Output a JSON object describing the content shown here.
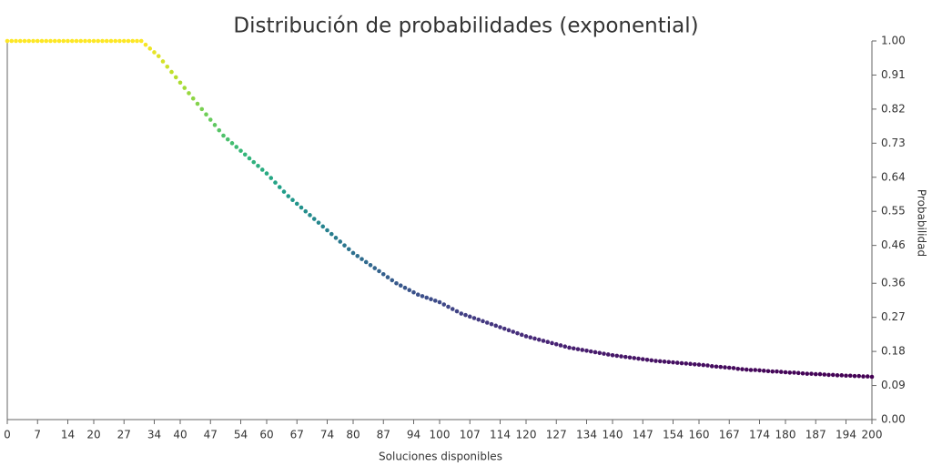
{
  "chart_data": {
    "type": "scatter",
    "title": "Distribución de probabilidades (exponential)",
    "xlabel": "Soluciones disponibles",
    "ylabel": "Probabilidad",
    "colormap": "viridis",
    "y_axis_side": "right",
    "grid": false,
    "x": [
      0,
      1,
      2,
      3,
      4,
      5,
      6,
      7,
      8,
      9,
      10,
      11,
      12,
      13,
      14,
      15,
      16,
      17,
      18,
      19,
      20,
      21,
      22,
      23,
      24,
      25,
      26,
      27,
      28,
      29,
      30,
      31,
      32,
      33,
      34,
      35,
      36,
      37,
      38,
      39,
      40,
      41,
      42,
      43,
      44,
      45,
      46,
      47,
      48,
      49,
      50,
      51,
      52,
      53,
      54,
      55,
      56,
      57,
      58,
      59,
      60,
      61,
      62,
      63,
      64,
      65,
      66,
      67,
      68,
      69,
      70,
      71,
      72,
      73,
      74,
      75,
      76,
      77,
      78,
      79,
      80,
      81,
      82,
      83,
      84,
      85,
      86,
      87,
      88,
      89,
      90,
      91,
      92,
      93,
      94,
      95,
      96,
      97,
      98,
      99,
      100,
      101,
      102,
      103,
      104,
      105,
      106,
      107,
      108,
      109,
      110,
      111,
      112,
      113,
      114,
      115,
      116,
      117,
      118,
      119,
      120,
      121,
      122,
      123,
      124,
      125,
      126,
      127,
      128,
      129,
      130,
      131,
      132,
      133,
      134,
      135,
      136,
      137,
      138,
      139,
      140,
      141,
      142,
      143,
      144,
      145,
      146,
      147,
      148,
      149,
      150,
      151,
      152,
      153,
      154,
      155,
      156,
      157,
      158,
      159,
      160,
      161,
      162,
      163,
      164,
      165,
      166,
      167,
      168,
      169,
      170,
      171,
      172,
      173,
      174,
      175,
      176,
      177,
      178,
      179,
      180,
      181,
      182,
      183,
      184,
      185,
      186,
      187,
      188,
      189,
      190,
      191,
      192,
      193,
      194,
      195,
      196,
      197,
      198,
      199,
      200
    ],
    "values": [
      1,
      1,
      1,
      1,
      1,
      1,
      1,
      1,
      1,
      1,
      1,
      1,
      1,
      1,
      1,
      1,
      1,
      1,
      1,
      1,
      1,
      1,
      1,
      1,
      1,
      1,
      1,
      1,
      1,
      1,
      1,
      1,
      0.99,
      0.98,
      0.97,
      0.96,
      0.946,
      0.932,
      0.918,
      0.904,
      0.89,
      0.876,
      0.862,
      0.848,
      0.834,
      0.82,
      0.806,
      0.792,
      0.778,
      0.764,
      0.75,
      0.74,
      0.73,
      0.72,
      0.71,
      0.7,
      0.69,
      0.68,
      0.67,
      0.66,
      0.65,
      0.638,
      0.626,
      0.614,
      0.602,
      0.59,
      0.58,
      0.57,
      0.56,
      0.55,
      0.54,
      0.53,
      0.52,
      0.51,
      0.5,
      0.49,
      0.48,
      0.47,
      0.46,
      0.45,
      0.44,
      0.432,
      0.424,
      0.416,
      0.408,
      0.4,
      0.392,
      0.384,
      0.376,
      0.368,
      0.36,
      0.354,
      0.348,
      0.342,
      0.336,
      0.33,
      0.326,
      0.322,
      0.318,
      0.314,
      0.31,
      0.304,
      0.298,
      0.292,
      0.286,
      0.28,
      0.276,
      0.272,
      0.268,
      0.264,
      0.26,
      0.256,
      0.252,
      0.248,
      0.244,
      0.24,
      0.236,
      0.232,
      0.228,
      0.224,
      0.22,
      0.217,
      0.214,
      0.211,
      0.208,
      0.205,
      0.202,
      0.199,
      0.196,
      0.193,
      0.19,
      0.188,
      0.186,
      0.184,
      0.182,
      0.18,
      0.178,
      0.176,
      0.174,
      0.172,
      0.17,
      0.1685,
      0.167,
      0.1655,
      0.164,
      0.1625,
      0.161,
      0.1595,
      0.158,
      0.1565,
      0.155,
      0.154,
      0.153,
      0.152,
      0.151,
      0.15,
      0.149,
      0.148,
      0.147,
      0.146,
      0.145,
      0.144,
      0.143,
      0.141,
      0.14,
      0.139,
      0.138,
      0.137,
      0.136,
      0.134,
      0.133,
      0.132,
      0.131,
      0.131,
      0.13,
      0.129,
      0.128,
      0.127,
      0.127,
      0.126,
      0.125,
      0.124,
      0.124,
      0.123,
      0.122,
      0.121,
      0.121,
      0.12,
      0.12,
      0.119,
      0.118,
      0.118,
      0.117,
      0.117,
      0.116,
      0.116,
      0.115,
      0.115,
      0.114,
      0.114,
      0.113
    ],
    "xlim": [
      0,
      200
    ],
    "xticks": [
      0,
      7,
      14,
      20,
      27,
      34,
      40,
      47,
      54,
      60,
      67,
      74,
      80,
      87,
      94,
      100,
      107,
      114,
      120,
      127,
      134,
      140,
      147,
      154,
      160,
      167,
      174,
      180,
      187,
      194,
      200
    ],
    "ylim": [
      0,
      1
    ],
    "yticks": [
      {
        "value": 0,
        "label": "0.00"
      },
      {
        "value": 0.09,
        "label": "0.09"
      },
      {
        "value": 0.18,
        "label": "0.18"
      },
      {
        "value": 0.27,
        "label": "0.27"
      },
      {
        "value": 0.36,
        "label": "0.36"
      },
      {
        "value": 0.46,
        "label": "0.46"
      },
      {
        "value": 0.55,
        "label": "0.55"
      },
      {
        "value": 0.64,
        "label": "0.64"
      },
      {
        "value": 0.73,
        "label": "0.73"
      },
      {
        "value": 0.82,
        "label": "0.82"
      },
      {
        "value": 0.91,
        "label": "0.91"
      },
      {
        "value": 1,
        "label": "1.00"
      }
    ]
  }
}
